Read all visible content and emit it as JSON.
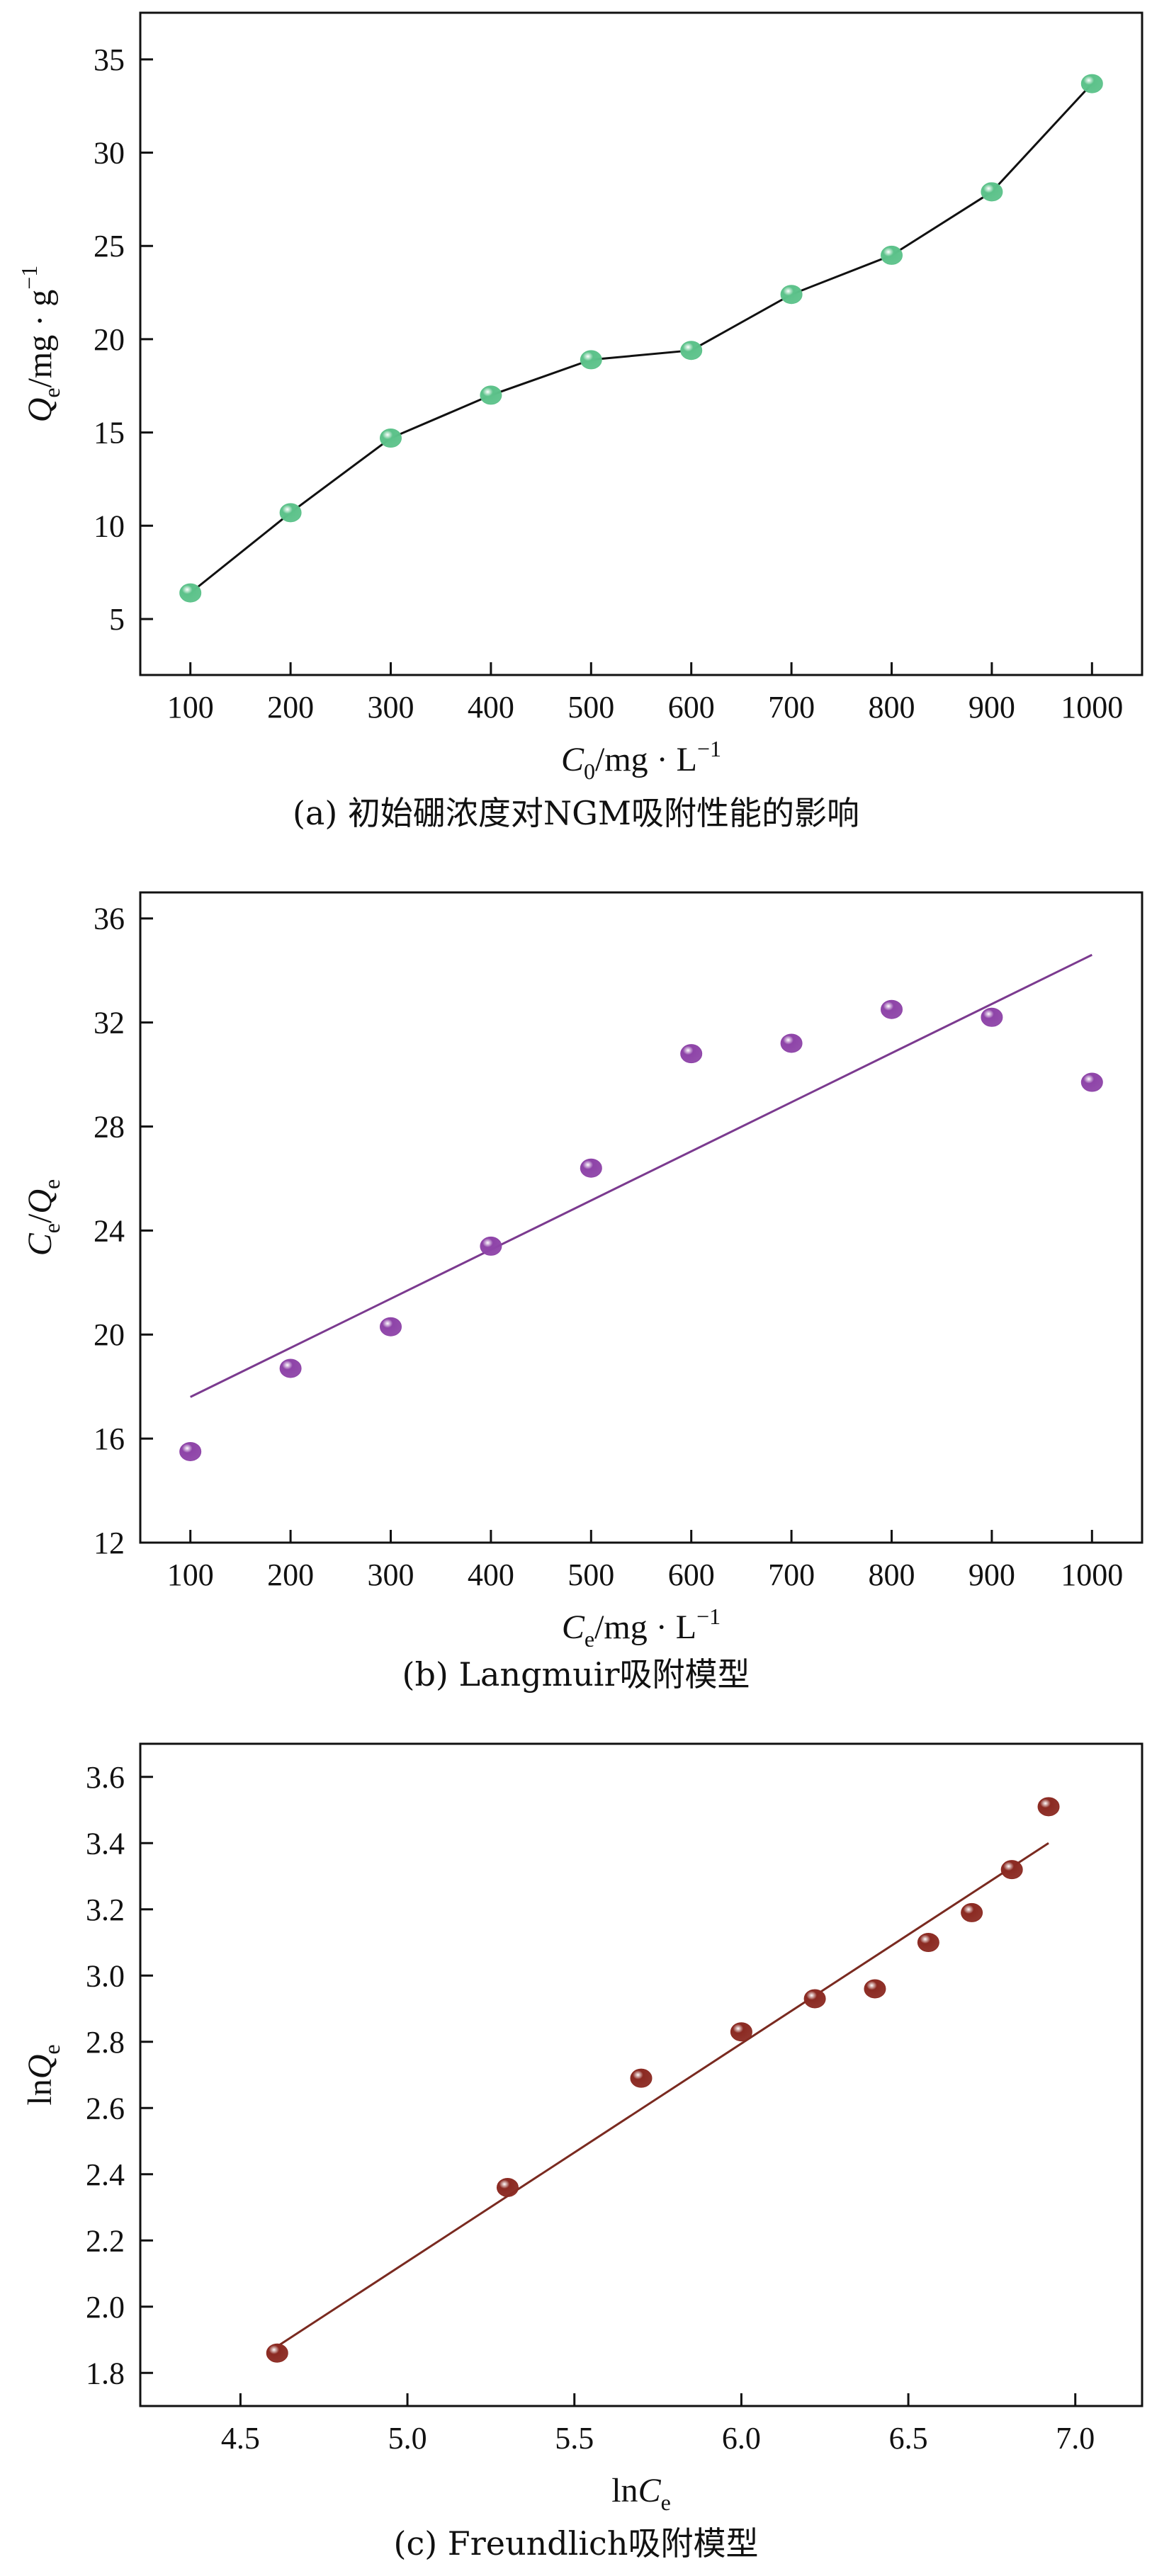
{
  "chart_data": [
    {
      "type": "line",
      "caption": "(a) 初始硼浓度对NGM吸附性能的影响",
      "xlabel": "C0/mg · L⁻¹",
      "xlabel_parts": {
        "sym": "C",
        "sub": "0",
        "unit": "/mg · L",
        "sup": "−1"
      },
      "ylabel": "Qe/mg · g⁻¹",
      "ylabel_parts": {
        "sym": "Q",
        "sub": "e",
        "unit": "/mg · g",
        "sup": "−1"
      },
      "xlim": [
        50,
        1050
      ],
      "ylim": [
        2,
        37.5
      ],
      "xticks": [
        100,
        200,
        300,
        400,
        500,
        600,
        700,
        800,
        900,
        1000
      ],
      "yticks": [
        5,
        10,
        15,
        20,
        25,
        30,
        35
      ],
      "marker_color": "#5cc28a",
      "line_color": "#111111",
      "series": [
        {
          "x": [
            100,
            200,
            300,
            400,
            500,
            600,
            700,
            800,
            900,
            1000
          ],
          "y": [
            6.4,
            10.7,
            14.7,
            17.0,
            18.9,
            19.4,
            22.4,
            24.5,
            27.9,
            33.7
          ]
        }
      ],
      "grid": false
    },
    {
      "type": "scatter",
      "caption": "(b) Langmuir吸附模型",
      "xlabel": "Ce/mg · L⁻¹",
      "xlabel_parts": {
        "sym": "C",
        "sub": "e",
        "unit": "/mg · L",
        "sup": "−1"
      },
      "ylabel": "Ce/Qe",
      "ylabel_parts": {
        "sym": "C",
        "sub": "e",
        "unit": "/",
        "sym2": "Q",
        "sub2": "e"
      },
      "xlim": [
        50,
        1050
      ],
      "ylim": [
        12,
        37
      ],
      "xticks": [
        100,
        200,
        300,
        400,
        500,
        600,
        700,
        800,
        900,
        1000
      ],
      "yticks": [
        12,
        16,
        20,
        24,
        28,
        32,
        36
      ],
      "marker_color": "#8e44a8",
      "line_color": "#7b3a8f",
      "series": [
        {
          "x": [
            100,
            200,
            300,
            400,
            500,
            600,
            700,
            800,
            900,
            1000
          ],
          "y": [
            15.5,
            18.7,
            20.3,
            23.4,
            26.4,
            30.8,
            31.2,
            32.5,
            32.2,
            29.7
          ]
        }
      ],
      "fit_line": {
        "x": [
          100,
          1000
        ],
        "y": [
          17.6,
          34.6
        ]
      },
      "grid": false
    },
    {
      "type": "scatter",
      "caption": "(c) Freundlich吸附模型",
      "xlabel": "lnCe",
      "xlabel_parts": {
        "sym": "ln",
        "sym_italic": "C",
        "sub": "e"
      },
      "ylabel": "lnQe",
      "ylabel_parts": {
        "sym": "ln",
        "sym_italic": "Q",
        "sub": "e"
      },
      "xlim": [
        4.2,
        7.2
      ],
      "ylim": [
        1.7,
        3.7
      ],
      "xticks": [
        "4.5",
        "5.0",
        "5.5",
        "6.0",
        "6.5",
        "7.0"
      ],
      "yticks": [
        "1.8",
        "2.0",
        "2.2",
        "2.4",
        "2.6",
        "2.8",
        "3.0",
        "3.2",
        "3.4",
        "3.6"
      ],
      "marker_color": "#8b2a22",
      "line_color": "#7a2a20",
      "series": [
        {
          "x": [
            4.61,
            5.3,
            5.7,
            6.0,
            6.22,
            6.4,
            6.56,
            6.69,
            6.81,
            6.92
          ],
          "y": [
            1.86,
            2.36,
            2.69,
            2.83,
            2.93,
            2.96,
            3.1,
            3.19,
            3.32,
            3.51
          ]
        }
      ],
      "fit_line": {
        "x": [
          4.61,
          6.92
        ],
        "y": [
          1.88,
          3.4
        ]
      },
      "grid": false
    }
  ]
}
